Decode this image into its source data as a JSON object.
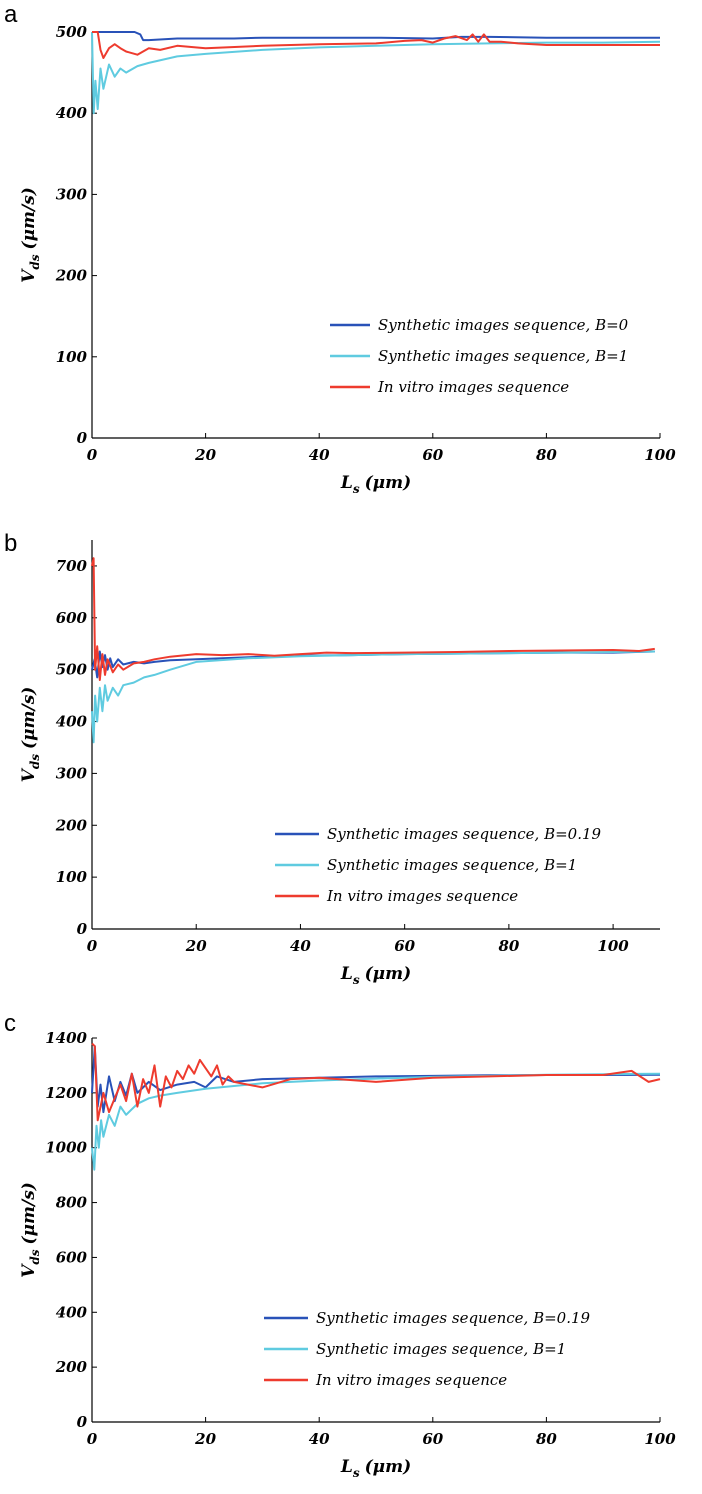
{
  "figure": {
    "panels": [
      {
        "letter": "a",
        "xlabel": "L",
        "xlabel_sub": "s",
        "xlabel_unit": "(μm)",
        "ylabel": "V",
        "ylabel_sub": "ds",
        "ylabel_unit": "(μm/s)"
      },
      {
        "letter": "b",
        "xlabel": "L",
        "xlabel_sub": "s",
        "xlabel_unit": "(μm)",
        "ylabel": "V",
        "ylabel_sub": "ds",
        "ylabel_unit": "(μm/s)"
      },
      {
        "letter": "c",
        "xlabel": "L",
        "xlabel_sub": "s",
        "xlabel_unit": "(μm)",
        "ylabel": "V",
        "ylabel_sub": "ds",
        "ylabel_unit": "(μm/s)"
      }
    ]
  },
  "colors": {
    "dark_blue": "#2952b8",
    "light_blue": "#5fcbe0",
    "red": "#ee3b2e"
  },
  "chart_data": [
    {
      "type": "line",
      "panel": "a",
      "xlim": [
        0,
        100
      ],
      "ylim": [
        0,
        500
      ],
      "xticks": [
        0,
        20,
        40,
        60,
        80,
        100
      ],
      "yticks": [
        0,
        100,
        200,
        300,
        400,
        500
      ],
      "legend_position": "lower-right",
      "grid": false,
      "series": [
        {
          "name": "Synthetic images sequence, B=0",
          "color": "#2952b8",
          "x": [
            0,
            7.5,
            8.5,
            9,
            10,
            15,
            20,
            25,
            30,
            40,
            50,
            60,
            65,
            70,
            80,
            90,
            100
          ],
          "y": [
            500,
            500,
            497,
            490,
            490,
            492,
            492,
            492,
            493,
            493,
            493,
            492,
            494,
            494,
            493,
            493,
            493
          ]
        },
        {
          "name": "Synthetic images sequence, B=1",
          "color": "#5fcbe0",
          "x": [
            0,
            0.3,
            0.6,
            1,
            1.5,
            2,
            3,
            4,
            5,
            6,
            8,
            10,
            15,
            20,
            30,
            40,
            50,
            60,
            70,
            80,
            90,
            100
          ],
          "y": [
            500,
            400,
            440,
            405,
            455,
            430,
            460,
            445,
            455,
            450,
            458,
            462,
            470,
            473,
            478,
            481,
            483,
            485,
            486,
            487,
            487,
            488
          ]
        },
        {
          "name": "In vitro images sequence",
          "color": "#ee3b2e",
          "x": [
            0,
            1,
            1.5,
            2,
            3,
            4,
            5,
            6,
            8,
            10,
            12,
            15,
            20,
            30,
            40,
            50,
            55,
            58,
            60,
            62,
            64,
            66,
            67,
            68,
            69,
            70,
            72,
            75,
            80,
            90,
            100
          ],
          "y": [
            500,
            500,
            478,
            468,
            480,
            485,
            480,
            476,
            472,
            480,
            478,
            483,
            480,
            483,
            485,
            486,
            489,
            490,
            487,
            492,
            495,
            490,
            497,
            488,
            497,
            488,
            488,
            486,
            484,
            484,
            484
          ]
        }
      ]
    },
    {
      "type": "line",
      "panel": "b",
      "xlim": [
        0,
        109
      ],
      "ylim": [
        0,
        750
      ],
      "xticks": [
        0,
        20,
        40,
        60,
        80,
        100
      ],
      "yticks": [
        0,
        100,
        200,
        300,
        400,
        500,
        600,
        700
      ],
      "legend_position": "lower-right",
      "grid": false,
      "series": [
        {
          "name": "Synthetic images sequence, B=0.19",
          "color": "#2952b8",
          "x": [
            0,
            0.5,
            1,
            1.5,
            2,
            2.5,
            3,
            3.5,
            4,
            5,
            6,
            8,
            10,
            12,
            15,
            20,
            30,
            40,
            50,
            60,
            70,
            80,
            90,
            100,
            108
          ],
          "y": [
            500,
            520,
            485,
            535,
            505,
            528,
            500,
            522,
            505,
            520,
            510,
            515,
            512,
            515,
            518,
            520,
            524,
            527,
            528,
            530,
            531,
            532,
            533,
            533,
            535
          ]
        },
        {
          "name": "Synthetic images sequence, B=1",
          "color": "#5fcbe0",
          "x": [
            0,
            0.3,
            0.6,
            1,
            1.5,
            2,
            2.5,
            3,
            4,
            5,
            6,
            8,
            10,
            12,
            15,
            20,
            30,
            40,
            50,
            60,
            70,
            80,
            90,
            100,
            108
          ],
          "y": [
            420,
            360,
            450,
            400,
            465,
            420,
            470,
            440,
            465,
            450,
            470,
            475,
            485,
            490,
            500,
            515,
            522,
            526,
            528,
            530,
            531,
            532,
            533,
            534,
            535
          ]
        },
        {
          "name": "In vitro images sequence",
          "color": "#ee3b2e",
          "x": [
            0,
            0.3,
            0.6,
            1,
            1.5,
            2,
            2.5,
            3,
            4,
            5,
            6,
            8,
            10,
            12,
            15,
            20,
            25,
            30,
            35,
            40,
            45,
            50,
            60,
            70,
            80,
            90,
            100,
            105,
            108
          ],
          "y": [
            700,
            715,
            500,
            545,
            480,
            530,
            490,
            520,
            495,
            510,
            500,
            512,
            515,
            520,
            525,
            530,
            528,
            530,
            527,
            530,
            533,
            532,
            533,
            534,
            536,
            537,
            538,
            536,
            540
          ]
        }
      ]
    },
    {
      "type": "line",
      "panel": "c",
      "xlim": [
        0,
        100
      ],
      "ylim": [
        0,
        1400
      ],
      "xticks": [
        0,
        20,
        40,
        60,
        80,
        100
      ],
      "yticks": [
        0,
        200,
        400,
        600,
        800,
        1000,
        1200,
        1400
      ],
      "legend_position": "lower-right",
      "grid": false,
      "series": [
        {
          "name": "Synthetic images sequence, B=0.19",
          "color": "#2952b8",
          "x": [
            0,
            0.5,
            1,
            1.5,
            2,
            3,
            4,
            5,
            6,
            7,
            8,
            10,
            12,
            15,
            18,
            20,
            22,
            25,
            30,
            40,
            50,
            60,
            70,
            80,
            90,
            100
          ],
          "y": [
            1200,
            1370,
            1150,
            1230,
            1130,
            1260,
            1170,
            1240,
            1190,
            1270,
            1200,
            1240,
            1210,
            1230,
            1240,
            1220,
            1260,
            1240,
            1250,
            1255,
            1260,
            1262,
            1264,
            1265,
            1265,
            1266
          ]
        },
        {
          "name": "Synthetic images sequence, B=1",
          "color": "#5fcbe0",
          "x": [
            0,
            0.4,
            0.8,
            1.2,
            1.6,
            2,
            3,
            4,
            5,
            6,
            8,
            10,
            12,
            15,
            20,
            25,
            30,
            40,
            50,
            60,
            70,
            80,
            90,
            100
          ],
          "y": [
            1000,
            920,
            1080,
            1000,
            1100,
            1040,
            1120,
            1080,
            1150,
            1120,
            1160,
            1180,
            1190,
            1200,
            1215,
            1225,
            1235,
            1245,
            1252,
            1258,
            1262,
            1266,
            1268,
            1270
          ]
        },
        {
          "name": "In vitro images sequence",
          "color": "#ee3b2e",
          "x": [
            0,
            0.5,
            1,
            2,
            3,
            4,
            5,
            6,
            7,
            8,
            9,
            10,
            11,
            12,
            13,
            14,
            15,
            16,
            17,
            18,
            19,
            20,
            21,
            22,
            23,
            24,
            25,
            30,
            35,
            40,
            50,
            60,
            70,
            80,
            90,
            95,
            98,
            100
          ],
          "y": [
            1380,
            1370,
            1100,
            1200,
            1130,
            1180,
            1230,
            1170,
            1270,
            1150,
            1250,
            1200,
            1300,
            1150,
            1260,
            1220,
            1280,
            1250,
            1300,
            1270,
            1320,
            1290,
            1260,
            1300,
            1230,
            1260,
            1240,
            1220,
            1250,
            1255,
            1240,
            1255,
            1260,
            1265,
            1265,
            1280,
            1240,
            1250
          ]
        }
      ]
    }
  ]
}
